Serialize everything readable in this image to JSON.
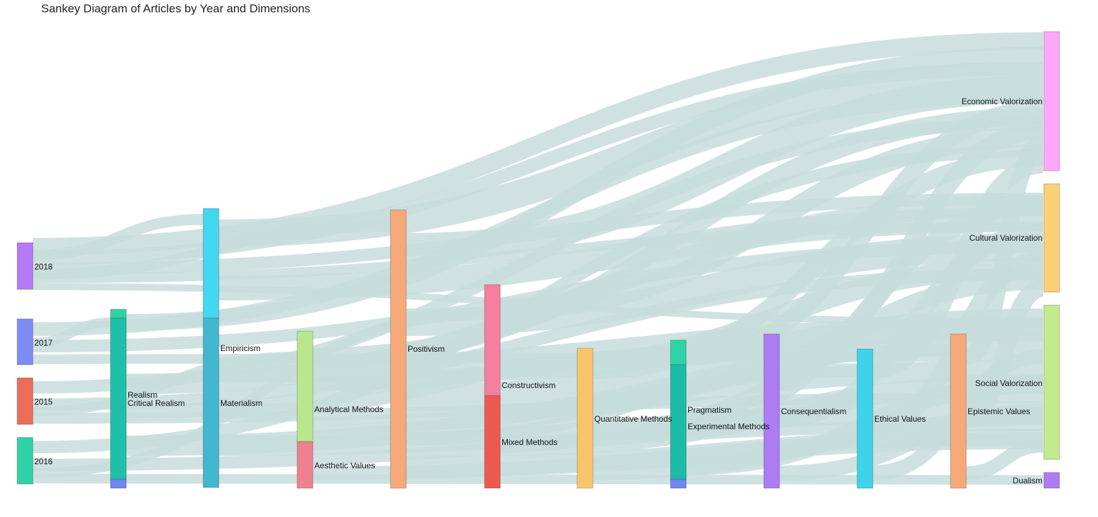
{
  "title": "Sankey Diagram of Articles by Year and Dimensions",
  "link_color": "#c7dddc",
  "chart_data": {
    "type": "sankey",
    "nodes": [
      {
        "id": "2018",
        "label": "2018",
        "color": "#b57af5",
        "column": 0
      },
      {
        "id": "2017",
        "label": "2017",
        "color": "#7f8cf5",
        "column": 0
      },
      {
        "id": "2015",
        "label": "2015",
        "color": "#ec6e5a",
        "column": 0
      },
      {
        "id": "2016",
        "label": "2016",
        "color": "#2fd2a6",
        "column": 0
      },
      {
        "id": "realism",
        "label": "Realism",
        "color": "#2fd2a6",
        "column": 1
      },
      {
        "id": "critical-realism",
        "label": "Critical Realism",
        "color": "#1fbfa9",
        "column": 1
      },
      {
        "id": "critical-realism-2",
        "label": "",
        "color": "#6f85ef",
        "column": 1
      },
      {
        "id": "empiricism",
        "label": "Empiricism",
        "color": "#45d6f0",
        "column": 2
      },
      {
        "id": "materialism",
        "label": "Materialism",
        "color": "#43b7cf",
        "column": 2
      },
      {
        "id": "analytical-methods",
        "label": "Analytical Methods",
        "color": "#b8e68d",
        "column": 3
      },
      {
        "id": "aesthetic-values",
        "label": "Aesthetic Values",
        "color": "#f0808f",
        "column": 3
      },
      {
        "id": "positivism",
        "label": "Positivism",
        "color": "#f5a979",
        "column": 4
      },
      {
        "id": "constructivism",
        "label": "Constructivism",
        "color": "#f47f9f",
        "column": 5
      },
      {
        "id": "mixed-methods",
        "label": "Mixed Methods",
        "color": "#ec5a4f",
        "column": 5
      },
      {
        "id": "quantitative-methods",
        "label": "Quantitative Methods",
        "color": "#fbc46c",
        "column": 6
      },
      {
        "id": "pragmatism",
        "label": "Pragmatism",
        "color": "#2fd2a6",
        "column": 7
      },
      {
        "id": "experimental-methods",
        "label": "Experimental Methods",
        "color": "#1bbba7",
        "column": 7
      },
      {
        "id": "experimental-methods-2",
        "label": "",
        "color": "#6f85ef",
        "column": 7
      },
      {
        "id": "consequentialism",
        "label": "Consequentialism",
        "color": "#ad7bf2",
        "column": 8
      },
      {
        "id": "ethical-values",
        "label": "Ethical Values",
        "color": "#3ed3ea",
        "column": 9
      },
      {
        "id": "epistemic-values",
        "label": "Epistemic Values",
        "color": "#f5a979",
        "column": 10
      },
      {
        "id": "economic-valorization",
        "label": "Economic Valorization",
        "color": "#fba8f9",
        "column": 11
      },
      {
        "id": "cultural-valorization",
        "label": "Cultural Valorization",
        "color": "#fdd077",
        "column": 11
      },
      {
        "id": "social-valorization",
        "label": "Social Valorization",
        "color": "#c4e98e",
        "column": 11
      },
      {
        "id": "dualism",
        "label": "Dualism",
        "color": "#ad7bf2",
        "column": 11
      }
    ]
  }
}
